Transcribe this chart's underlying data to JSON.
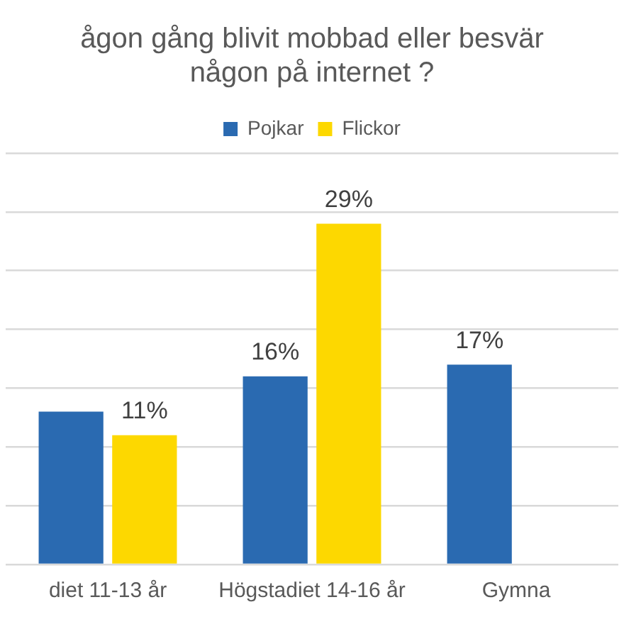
{
  "chart_data": {
    "type": "bar",
    "title": "ågon gång blivit mobbad eller besvär\nnågon på internet ?",
    "categories": [
      "diet 11-13 år",
      "Högstadiet 14-16 år",
      "Gymna"
    ],
    "series": [
      {
        "name": "Pojkar",
        "color": "#2a6ab1",
        "values": [
          13,
          16,
          17
        ],
        "value_labels": [
          null,
          "16%",
          "17%"
        ]
      },
      {
        "name": "Flickor",
        "color": "#fdd800",
        "values": [
          11,
          29,
          null
        ],
        "value_labels": [
          "11%",
          "29%",
          null
        ]
      }
    ],
    "ylim": [
      0,
      35
    ],
    "yticks": [
      {
        "value": 0,
        "label": null
      },
      {
        "value": 5,
        "label": null
      },
      {
        "value": 10,
        "label": null
      },
      {
        "value": 15,
        "label": null
      },
      {
        "value": 20,
        "label": null
      },
      {
        "value": 25,
        "label": null
      },
      {
        "value": 30,
        "label": null
      },
      {
        "value": 35,
        "label": null
      }
    ],
    "tick_labels": "x",
    "grid": "y",
    "legend": "top"
  }
}
